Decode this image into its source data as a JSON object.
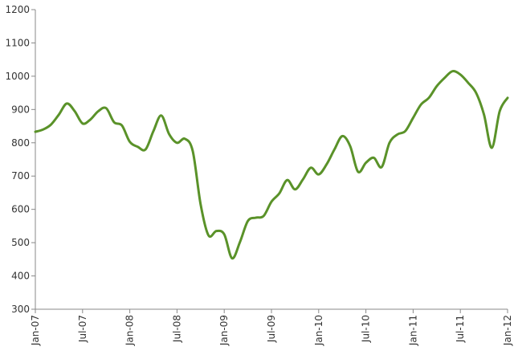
{
  "chart_data": {
    "type": "line",
    "title": "",
    "xlabel": "",
    "ylabel": "",
    "ylim": [
      300,
      1200
    ],
    "yticks": [
      300,
      400,
      500,
      600,
      700,
      800,
      900,
      1000,
      1100,
      1200
    ],
    "xticks": [
      "Jan-07",
      "Jul-07",
      "Jan-08",
      "Jul-08",
      "Jan-09",
      "Jul-09",
      "Jan-10",
      "Jul-10",
      "Jan-11",
      "Jul-11",
      "Jan-12"
    ],
    "grid": false,
    "legend": "none",
    "line_color": "#5a9229",
    "series": [
      {
        "x": [
          "2007-01",
          "2007-02",
          "2007-03",
          "2007-04",
          "2007-05",
          "2007-06",
          "2007-07",
          "2007-08",
          "2007-09",
          "2007-10",
          "2007-11",
          "2007-12",
          "2008-01",
          "2008-02",
          "2008-03",
          "2008-04",
          "2008-05",
          "2008-06",
          "2008-07",
          "2008-08",
          "2008-09",
          "2008-10",
          "2008-11",
          "2008-12",
          "2009-01",
          "2009-02",
          "2009-03",
          "2009-04",
          "2009-05",
          "2009-06",
          "2009-07",
          "2009-08",
          "2009-09",
          "2009-10",
          "2009-11",
          "2009-12",
          "2010-01",
          "2010-02",
          "2010-03",
          "2010-04",
          "2010-05",
          "2010-06",
          "2010-07",
          "2010-08",
          "2010-09",
          "2010-10",
          "2010-11",
          "2010-12",
          "2011-01",
          "2011-02",
          "2011-03",
          "2011-04",
          "2011-05",
          "2011-06",
          "2011-07",
          "2011-08",
          "2011-09",
          "2011-10",
          "2011-11",
          "2011-12",
          "2012-01"
        ],
        "values": [
          833,
          840,
          855,
          885,
          918,
          895,
          858,
          870,
          895,
          904,
          862,
          852,
          803,
          788,
          780,
          835,
          882,
          826,
          800,
          812,
          775,
          615,
          522,
          535,
          525,
          453,
          502,
          565,
          575,
          580,
          623,
          648,
          688,
          660,
          690,
          725,
          705,
          735,
          780,
          820,
          790,
          713,
          740,
          755,
          727,
          800,
          825,
          835,
          875,
          915,
          935,
          970,
          995,
          1015,
          1005,
          980,
          950,
          885,
          785,
          895,
          935
        ]
      }
    ]
  }
}
